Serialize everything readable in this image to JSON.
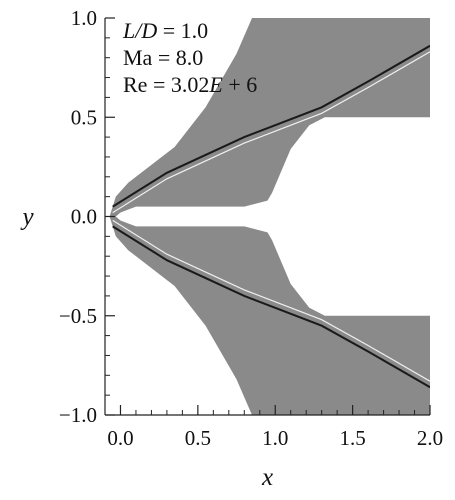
{
  "chart_data": {
    "type": "heatmap",
    "title": "",
    "xlabel": "x",
    "ylabel": "y",
    "xlim": [
      -0.1,
      2.0
    ],
    "ylim": [
      -1.0,
      1.0
    ],
    "x_ticks": [
      0.0,
      0.5,
      1.0,
      1.5,
      2.0
    ],
    "x_tick_labels": [
      "0.0",
      "0.5",
      "1.0",
      "1.5",
      "2.0"
    ],
    "y_ticks": [
      -1.0,
      -0.5,
      0.0,
      0.5,
      1.0
    ],
    "y_tick_labels": [
      "−1.0",
      "−0.5",
      "0.0",
      "0.5",
      "1.0"
    ],
    "grid": false,
    "annotations": [
      {
        "italic": "L/D",
        "rest": " = 1.0"
      },
      {
        "italic": "",
        "rest": "Ma = 8.0"
      },
      {
        "italic": "",
        "rest": "Re = 3.02",
        "italic2": "E",
        "rest2": " + 6"
      }
    ],
    "field_color": "#8a8a8a",
    "series": [
      {
        "x": [
          -0.05,
          0.3,
          0.8,
          1.3,
          1.6,
          2.0
        ],
        "y": [
          0.05,
          0.22,
          0.4,
          0.55,
          0.68,
          0.86
        ]
      },
      {
        "x": [
          -0.05,
          0.3,
          0.8,
          1.3,
          1.6,
          2.0
        ],
        "y": [
          -0.05,
          -0.22,
          -0.4,
          -0.55,
          -0.68,
          -0.86
        ]
      }
    ]
  }
}
